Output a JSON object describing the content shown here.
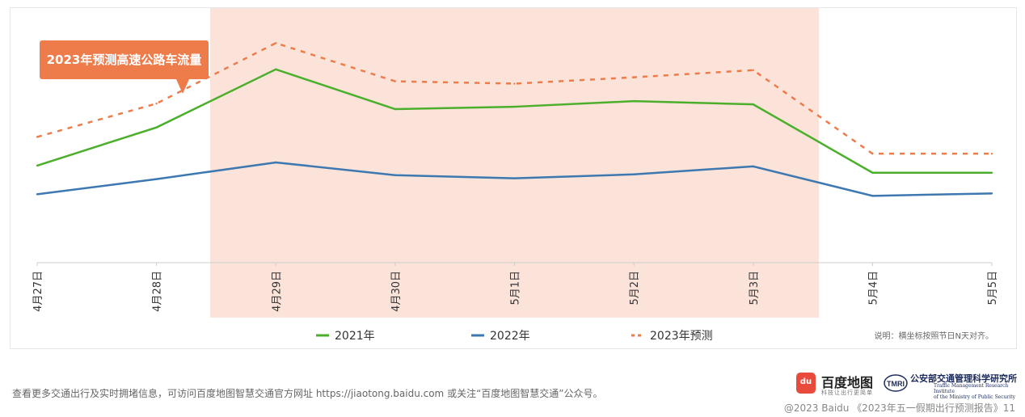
{
  "chart_data": {
    "type": "line",
    "categories": [
      "4月27日",
      "4月28日",
      "4月29日",
      "4月30日",
      "5月1日",
      "5月2日",
      "5月3日",
      "5月4日",
      "5月5日"
    ],
    "series": [
      {
        "name": "2021年",
        "values": [
          122,
          170,
          243,
          193,
          196,
          203,
          199,
          113,
          113
        ],
        "color": "#4caf2c",
        "dash": false
      },
      {
        "name": "2022年",
        "values": [
          86,
          105,
          126,
          110,
          106,
          111,
          121,
          84,
          87
        ],
        "color": "#3d78b0",
        "dash": false
      },
      {
        "name": "2023年预测",
        "values": [
          158,
          200,
          276,
          228,
          225,
          233,
          242,
          137,
          137
        ],
        "color": "#ee7b4a",
        "dash": true
      }
    ],
    "ylim": [
      0,
      320
    ],
    "highlight_range": [
      "4月29日",
      "5月3日"
    ],
    "highlight_color": "#fbe3da",
    "legend_position": "bottom",
    "grid": false,
    "xlabel": "",
    "ylabel": ""
  },
  "callout": {
    "text": "2023年预测高速公路车流量",
    "color": "#ee7b4a"
  },
  "note": "说明：横坐标按照节日N天对齐。",
  "footer": {
    "text": "查看更多交通出行及实时拥堵信息，可访问百度地图智慧交通官方网址 https://jiaotong.baidu.com 或关注“百度地图智慧交通”公众号。",
    "copyright": "@2023 Baidu 《2023年五一假期出行预测报告》11"
  },
  "logos": {
    "baidu_badge": "du",
    "baidu_name": "百度地图",
    "baidu_sub": "科技让出行更简单",
    "tmri_mark": "TMRI",
    "tmri_cn": "公安部交通管理科学研究所",
    "tmri_en_1": "Traffic Management Research Institute",
    "tmri_en_2": "of the Ministry of Public Security"
  }
}
